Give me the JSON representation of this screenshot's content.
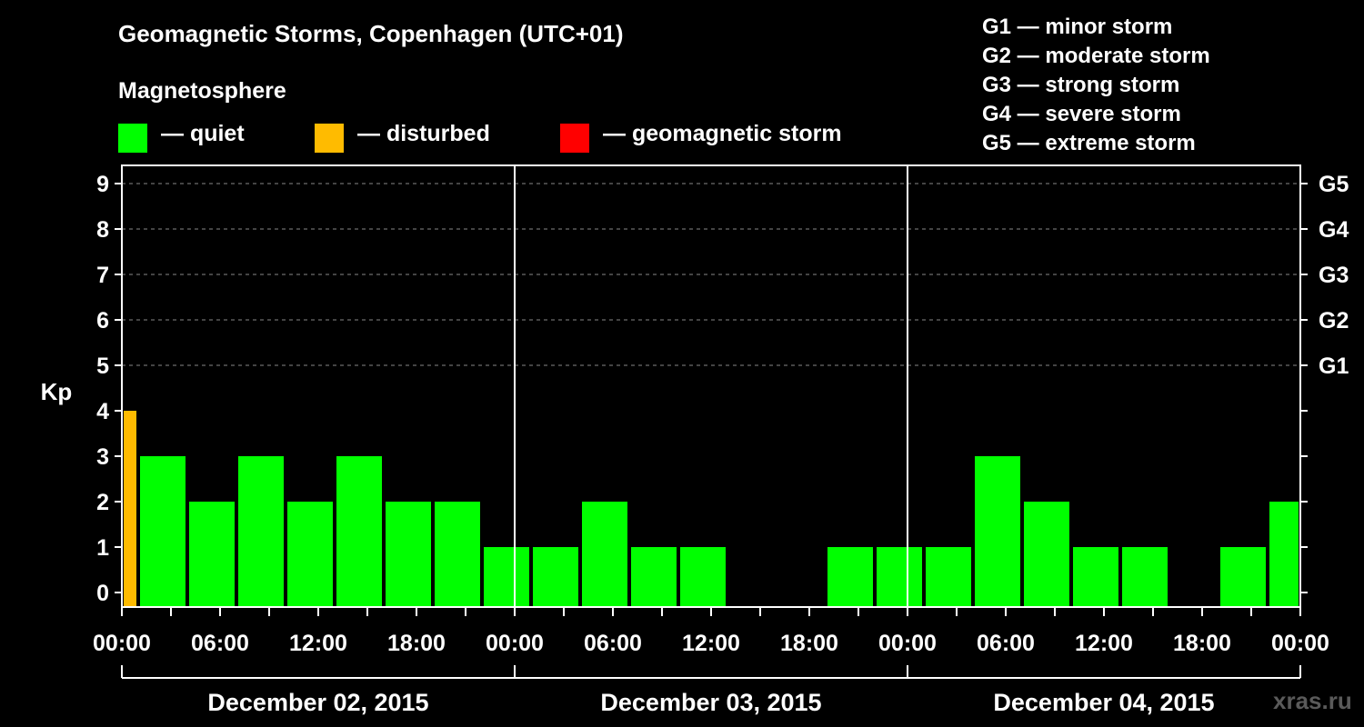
{
  "title": "Geomagnetic Storms, Copenhagen (UTC+01)",
  "subtitle": "Magnetosphere",
  "legend": [
    {
      "label": "— quiet",
      "color": "#00ff00"
    },
    {
      "label": "— disturbed",
      "color": "#ffbb00"
    },
    {
      "label": "— geomagnetic storm",
      "color": "#ff0000"
    }
  ],
  "storm_scale": [
    "G1 — minor storm",
    "G2 — moderate storm",
    "G3 — strong storm",
    "G4 — severe storm",
    "G5 — extreme storm"
  ],
  "watermark": "xras.ru",
  "colors": {
    "background": "#000000",
    "axis": "#ffffff",
    "grid": "#888888"
  },
  "chart_data": {
    "type": "bar",
    "ylabel": "Kp",
    "ylim": [
      0,
      9
    ],
    "yticks": [
      "0",
      "1",
      "2",
      "3",
      "4",
      "5",
      "6",
      "7",
      "8",
      "9"
    ],
    "right_ticks": [
      {
        "kp": 5,
        "label": "G1"
      },
      {
        "kp": 6,
        "label": "G2"
      },
      {
        "kp": 7,
        "label": "G3"
      },
      {
        "kp": 8,
        "label": "G4"
      },
      {
        "kp": 9,
        "label": "G5"
      }
    ],
    "grid_kp": [
      5,
      6,
      7,
      8,
      9
    ],
    "total_hours": 72,
    "xticks": [
      {
        "hour": 0,
        "label": "00:00"
      },
      {
        "hour": 6,
        "label": "06:00"
      },
      {
        "hour": 12,
        "label": "12:00"
      },
      {
        "hour": 18,
        "label": "18:00"
      },
      {
        "hour": 24,
        "label": "00:00"
      },
      {
        "hour": 30,
        "label": "06:00"
      },
      {
        "hour": 36,
        "label": "12:00"
      },
      {
        "hour": 42,
        "label": "18:00"
      },
      {
        "hour": 48,
        "label": "00:00"
      },
      {
        "hour": 54,
        "label": "06:00"
      },
      {
        "hour": 60,
        "label": "12:00"
      },
      {
        "hour": 66,
        "label": "18:00"
      },
      {
        "hour": 72,
        "label": "00:00"
      }
    ],
    "days": [
      {
        "label": "December 02, 2015",
        "start_hour": 0,
        "end_hour": 24
      },
      {
        "label": "December 03, 2015",
        "start_hour": 24,
        "end_hour": 48
      },
      {
        "label": "December 04, 2015",
        "start_hour": 48,
        "end_hour": 72
      }
    ],
    "bars": [
      {
        "start": 0,
        "end": 1,
        "kp": 4,
        "status": "disturbed"
      },
      {
        "start": 1,
        "end": 4,
        "kp": 3,
        "status": "quiet"
      },
      {
        "start": 4,
        "end": 7,
        "kp": 2,
        "status": "quiet"
      },
      {
        "start": 7,
        "end": 10,
        "kp": 3,
        "status": "quiet"
      },
      {
        "start": 10,
        "end": 13,
        "kp": 2,
        "status": "quiet"
      },
      {
        "start": 13,
        "end": 16,
        "kp": 3,
        "status": "quiet"
      },
      {
        "start": 16,
        "end": 19,
        "kp": 2,
        "status": "quiet"
      },
      {
        "start": 19,
        "end": 22,
        "kp": 2,
        "status": "quiet"
      },
      {
        "start": 22,
        "end": 25,
        "kp": 1,
        "status": "quiet"
      },
      {
        "start": 25,
        "end": 28,
        "kp": 1,
        "status": "quiet"
      },
      {
        "start": 28,
        "end": 31,
        "kp": 2,
        "status": "quiet"
      },
      {
        "start": 31,
        "end": 34,
        "kp": 1,
        "status": "quiet"
      },
      {
        "start": 34,
        "end": 37,
        "kp": 1,
        "status": "quiet"
      },
      {
        "start": 37,
        "end": 40,
        "kp": 0,
        "status": "quiet"
      },
      {
        "start": 40,
        "end": 43,
        "kp": 0,
        "status": "quiet"
      },
      {
        "start": 43,
        "end": 46,
        "kp": 1,
        "status": "quiet"
      },
      {
        "start": 46,
        "end": 49,
        "kp": 1,
        "status": "quiet"
      },
      {
        "start": 49,
        "end": 52,
        "kp": 1,
        "status": "quiet"
      },
      {
        "start": 52,
        "end": 55,
        "kp": 3,
        "status": "quiet"
      },
      {
        "start": 55,
        "end": 58,
        "kp": 2,
        "status": "quiet"
      },
      {
        "start": 58,
        "end": 61,
        "kp": 1,
        "status": "quiet"
      },
      {
        "start": 61,
        "end": 64,
        "kp": 1,
        "status": "quiet"
      },
      {
        "start": 64,
        "end": 67,
        "kp": 0,
        "status": "quiet"
      },
      {
        "start": 67,
        "end": 70,
        "kp": 1,
        "status": "quiet"
      },
      {
        "start": 70,
        "end": 72,
        "kp": 2,
        "status": "quiet"
      }
    ]
  }
}
